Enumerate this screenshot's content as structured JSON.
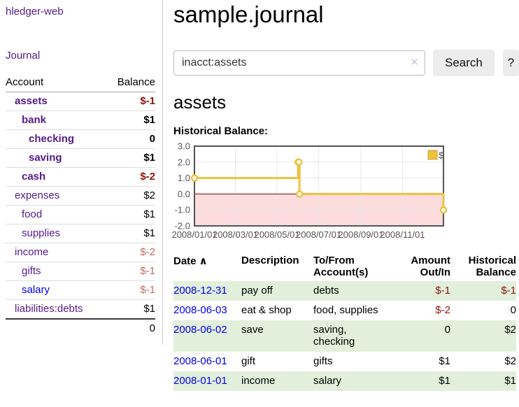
{
  "sidebar": {
    "brand": "hledger-web",
    "nav_journal": "Journal",
    "header": {
      "account": "Account",
      "balance": "Balance"
    },
    "accounts": [
      {
        "name": "assets",
        "balance": "$-1"
      },
      {
        "name": "bank",
        "balance": "$1"
      },
      {
        "name": "checking",
        "balance": "0"
      },
      {
        "name": "saving",
        "balance": "$1"
      },
      {
        "name": "cash",
        "balance": "$-2"
      },
      {
        "name": "expenses",
        "balance": "$2"
      },
      {
        "name": "food",
        "balance": "$1"
      },
      {
        "name": "supplies",
        "balance": "$1"
      },
      {
        "name": "income",
        "balance": "$-2"
      },
      {
        "name": "gifts",
        "balance": "$-1"
      },
      {
        "name": "salary",
        "balance": "$-1"
      },
      {
        "name": "liabilities:debts",
        "balance": "$1"
      }
    ],
    "total": "0"
  },
  "header": {
    "title": "sample.journal"
  },
  "search": {
    "value": "inacct:assets",
    "clear_icon": "✕",
    "search_button": "Search",
    "help_button": "?"
  },
  "account_view": {
    "title": "assets",
    "chart_heading": "Historical Balance:"
  },
  "chart_data": {
    "type": "line",
    "step": true,
    "title": "Historical Balance",
    "legend": "$",
    "series": [
      {
        "name": "$",
        "color": "#edc240",
        "points": [
          [
            "2008-01-01",
            1
          ],
          [
            "2008-06-01",
            2
          ],
          [
            "2008-06-02",
            2
          ],
          [
            "2008-06-03",
            0
          ],
          [
            "2008-12-31",
            -1
          ]
        ]
      }
    ],
    "x_start": "2008-01-01",
    "x_end": "2008-12-31",
    "xticks": [
      {
        "date": "2008-01-01",
        "label": "2008/01/01"
      },
      {
        "date": "2008-03-01",
        "label": "2008/03/01"
      },
      {
        "date": "2008-05-01",
        "label": "2008/05/01"
      },
      {
        "date": "2008-07-01",
        "label": "2008/07/01"
      },
      {
        "date": "2008-09-01",
        "label": "2008/09/01"
      },
      {
        "date": "2008-11-01",
        "label": "2008/11/01"
      }
    ],
    "ylim": [
      -2,
      3
    ],
    "yticks": [
      {
        "v": 3,
        "label": "3.0"
      },
      {
        "v": 2,
        "label": "2.0"
      },
      {
        "v": 1,
        "label": "1.0"
      },
      {
        "v": 0,
        "label": "0.0"
      },
      {
        "v": -1,
        "label": "-1.0"
      },
      {
        "v": -2,
        "label": "-2.0"
      }
    ],
    "grid": true,
    "legend_position": "top-right",
    "negative_region_color": "#fcdcdc",
    "zero_line_color": "#8b0000",
    "border_color": "#545454",
    "grid_color": "#e8e8e8",
    "tick_color": "#545454"
  },
  "table": {
    "headers": {
      "date": "Date",
      "sort_indicator": "∧",
      "description": "Description",
      "tofrom": "To/From Account(s)",
      "amount": "Amount Out/In",
      "historical": "Historical Balance"
    },
    "rows": [
      {
        "date": "2008-12-31",
        "description": "pay off",
        "accounts": "debts",
        "amount": "$-1",
        "historical": "$-1"
      },
      {
        "date": "2008-06-03",
        "description": "eat & shop",
        "accounts": "food, supplies",
        "amount": "$-2",
        "historical": "0"
      },
      {
        "date": "2008-06-02",
        "description": "save",
        "accounts": "saving, checking",
        "amount": "0",
        "historical": "$2"
      },
      {
        "date": "2008-06-01",
        "description": "gift",
        "accounts": "gifts",
        "amount": "$1",
        "historical": "$2"
      },
      {
        "date": "2008-01-01",
        "description": "income",
        "accounts": "salary",
        "amount": "$1",
        "historical": "$1"
      }
    ]
  }
}
